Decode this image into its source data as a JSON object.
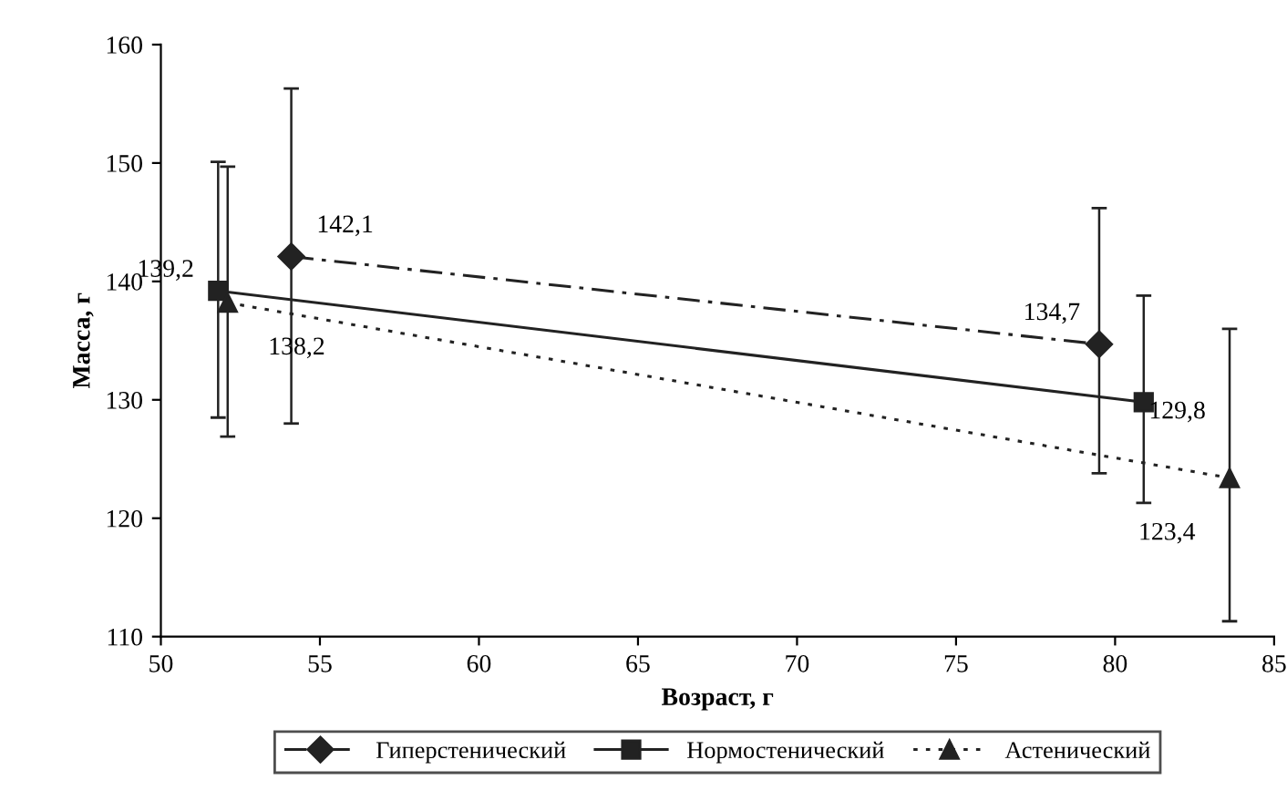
{
  "chart_data": {
    "type": "line",
    "xlabel": "Возраст, г",
    "ylabel": "Масса, г",
    "xlim": [
      50,
      85
    ],
    "xticks": [
      50,
      55,
      60,
      65,
      70,
      75,
      80,
      85
    ],
    "ylim": [
      110,
      160
    ],
    "yticks": [
      110,
      120,
      130,
      140,
      150,
      160
    ],
    "grid": false,
    "legend": "bottom",
    "series": [
      {
        "name": "Гиперстенический",
        "color": "#222222",
        "x": [
          54.1,
          79.5
        ],
        "values": [
          142.1,
          134.7
        ],
        "errors": [
          [
            128.0,
            156.3
          ],
          [
            123.8,
            146.2
          ]
        ],
        "value_labels": [
          "142,1",
          "134,7"
        ],
        "marker": "diamond",
        "line_style": "dashed"
      },
      {
        "name": "Нормостенический",
        "color": "#222222",
        "x": [
          51.8,
          80.9
        ],
        "values": [
          139.2,
          129.8
        ],
        "errors": [
          [
            128.5,
            150.1
          ],
          [
            121.3,
            138.8
          ]
        ],
        "value_labels": [
          "139,2",
          "129,8"
        ],
        "marker": "square",
        "line_style": "solid"
      },
      {
        "name": "Астенический",
        "color": "#222222",
        "x": [
          52.1,
          83.6
        ],
        "values": [
          138.2,
          123.4
        ],
        "errors": [
          [
            126.9,
            149.7
          ],
          [
            111.3,
            136.0
          ]
        ],
        "value_labels": [
          "138,2",
          "123,4"
        ],
        "marker": "triangle",
        "line_style": "dotted"
      }
    ]
  }
}
